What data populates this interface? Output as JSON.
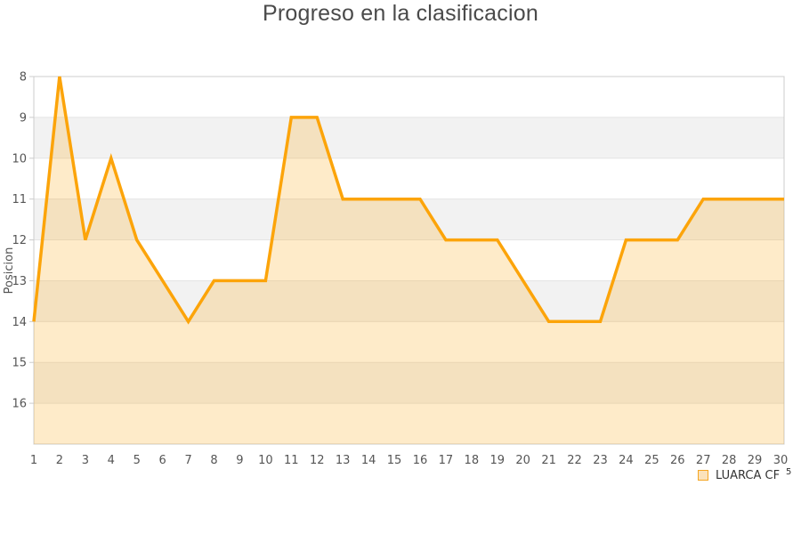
{
  "title": "Progreso en la clasificacion",
  "axes": {
    "y_label": "Posicion",
    "y_ticks": [
      "8",
      "9",
      "10",
      "11",
      "12",
      "13",
      "14",
      "15",
      "16"
    ],
    "x_ticks": [
      "1",
      "2",
      "3",
      "4",
      "5",
      "6",
      "7",
      "8",
      "9",
      "10",
      "11",
      "12",
      "13",
      "14",
      "15",
      "16",
      "17",
      "18",
      "19",
      "20",
      "21",
      "22",
      "23",
      "24",
      "25",
      "26",
      "27",
      "28",
      "29",
      "30"
    ]
  },
  "legend": {
    "label": "LUARCA CF",
    "superscript": "5"
  },
  "chart_data": {
    "type": "area",
    "title": "Progreso en la clasificacion",
    "xlabel": "",
    "ylabel": "Posicion",
    "x": [
      1,
      2,
      3,
      4,
      5,
      6,
      7,
      8,
      9,
      10,
      11,
      12,
      13,
      14,
      15,
      16,
      17,
      18,
      19,
      20,
      21,
      22,
      23,
      24,
      25,
      26,
      27,
      28,
      29,
      30
    ],
    "series": [
      {
        "name": "LUARCA CF",
        "values": [
          14,
          8,
          12,
          10,
          12,
          13,
          14,
          13,
          13,
          13,
          9,
          9,
          11,
          11,
          11,
          11,
          12,
          12,
          12,
          13,
          14,
          14,
          14,
          12,
          12,
          12,
          11,
          11,
          11,
          11
        ]
      }
    ],
    "y_axis": {
      "inverted": true,
      "top_value": 8,
      "bottom_value": 17,
      "labeled_min": 8,
      "labeled_max": 16,
      "tick_step": 1
    },
    "x_axis": {
      "min": 1,
      "max": 30,
      "tick_step": 1
    },
    "grid": "horizontal",
    "legend_position": "bottom-right",
    "colors": {
      "line": "#fca40a",
      "area_fill": "rgba(252,164,10,0.22)",
      "band_even": "#ffffff",
      "band_odd": "#f2f2f2",
      "gridline": "#e4e4e4",
      "plot_border": "#cccccc",
      "tick_text": "#555555",
      "title_text": "#4a4a4a",
      "legend_swatch_fill": "#fbe2bb",
      "legend_swatch_border": "#f5a623"
    }
  }
}
